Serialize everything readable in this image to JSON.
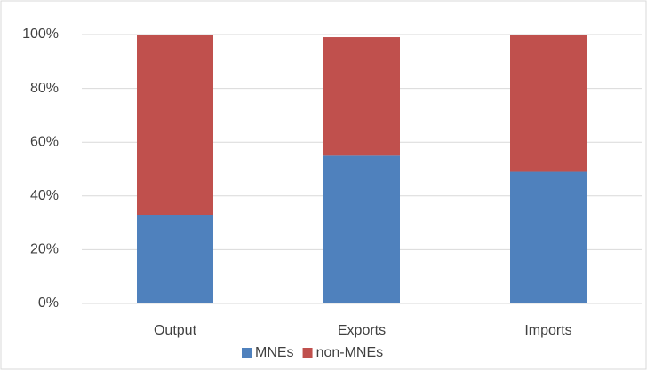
{
  "chart_data": {
    "type": "stacked_bar",
    "categories": [
      "Output",
      "Exports",
      "Imports"
    ],
    "series": [
      {
        "name": "MNEs",
        "color": "#4f81bd",
        "values": [
          33,
          55,
          49
        ]
      },
      {
        "name": "non-MNEs",
        "color": "#c0504d",
        "values": [
          67,
          44,
          51
        ]
      }
    ],
    "ylim": [
      0,
      100
    ],
    "yticks": [
      {
        "value": 0,
        "label": "0%"
      },
      {
        "value": 20,
        "label": "20%"
      },
      {
        "value": 40,
        "label": "40%"
      },
      {
        "value": 60,
        "label": "60%"
      },
      {
        "value": 80,
        "label": "80%"
      },
      {
        "value": 100,
        "label": "100%"
      }
    ],
    "grid": true,
    "legend": "bottom"
  }
}
